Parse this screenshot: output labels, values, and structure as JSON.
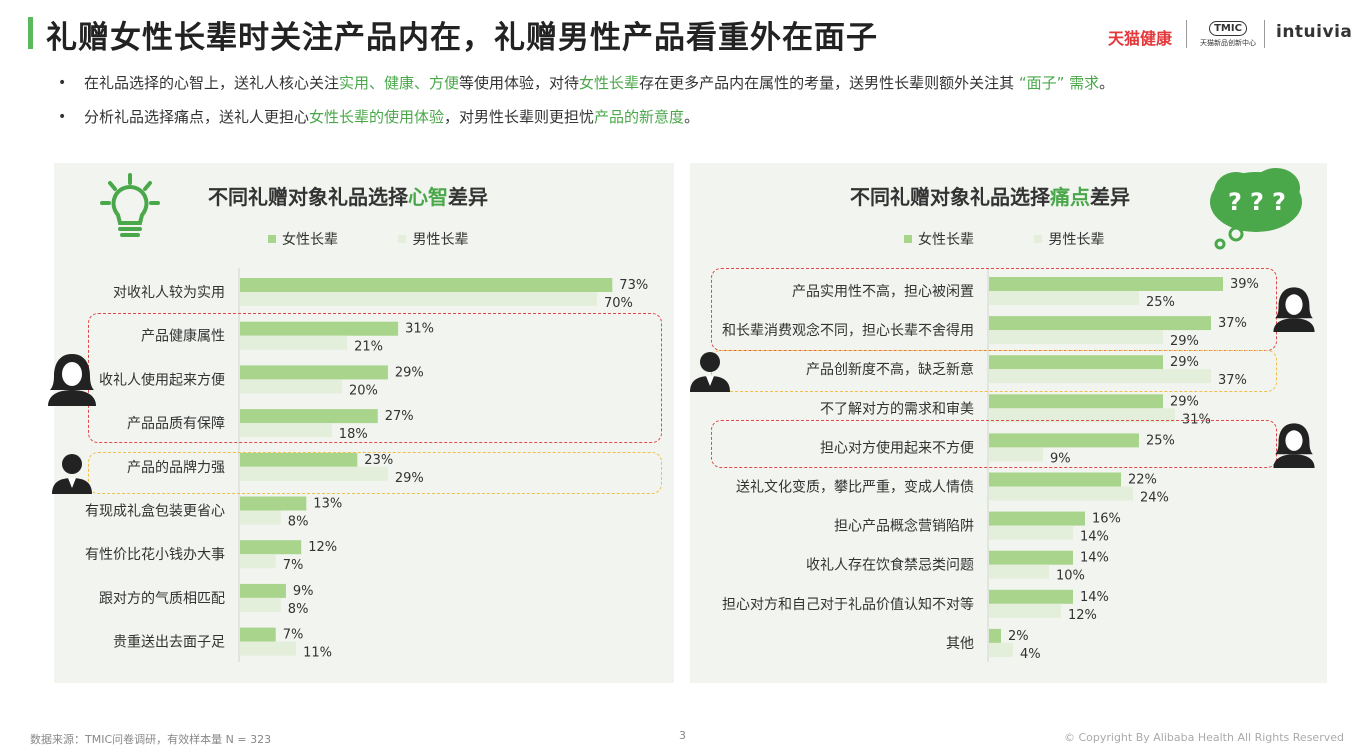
{
  "title": "礼赠女性长辈时关注产品内在，礼赠男性产品看重外在面子",
  "brands": {
    "tmall": "天猫健康",
    "tmic": "TMIC",
    "tmic_sub": "天猫新品创新中心",
    "intuivia": "intuivia"
  },
  "bullets": [
    {
      "parts": [
        "在礼品选择的心智上，送礼人核心关注",
        "实用、健康、方便",
        "等使用体验，对待",
        "女性长辈",
        "存在更多产品内在属性的考量，送男性长辈则额外关注其 ",
        "“面子” 需求",
        "。"
      ]
    },
    {
      "parts": [
        "分析礼品选择痛点，送礼人更担心",
        "女性长辈的使用体验",
        "，对男性长辈则更担忧",
        "产品的新意度",
        "。"
      ]
    }
  ],
  "colors": {
    "female": "#a9d48b",
    "male": "#e3eedb",
    "accent": "#4aa84a",
    "red_box": "#e04a4a",
    "yellow_box": "#f0c04a"
  },
  "legend": {
    "female": "女性长辈",
    "male": "男性长辈"
  },
  "chart_data": [
    {
      "type": "bar",
      "title_parts": [
        "不同礼赠对象礼品选择",
        "心智",
        "差异"
      ],
      "categories": [
        "对收礼人较为实用",
        "产品健康属性",
        "收礼人使用起来方便",
        "产品品质有保障",
        "产品的品牌力强",
        "有现成礼盒包装更省心",
        "有性价比花小钱办大事",
        "跟对方的气质相匹配",
        "贵重送出去面子足"
      ],
      "series": [
        {
          "name": "女性长辈",
          "values": [
            73,
            31,
            29,
            27,
            23,
            13,
            12,
            9,
            7
          ]
        },
        {
          "name": "男性长辈",
          "values": [
            70,
            21,
            20,
            18,
            29,
            8,
            7,
            8,
            11
          ]
        }
      ],
      "unit": "%"
    },
    {
      "type": "bar",
      "title_parts": [
        "不同礼赠对象礼品选择",
        "痛点",
        "差异"
      ],
      "categories": [
        "产品实用性不高，担心被闲置",
        "和长辈消费观念不同，担心长辈不舍得用",
        "产品创新度不高，缺乏新意",
        "不了解对方的需求和审美",
        "担心对方使用起来不方便",
        "送礼文化变质，攀比严重，变成人情债",
        "担心产品概念营销陷阱",
        "收礼人存在饮食禁忌类问题",
        "担心对方和自己对于礼品价值认知不对等",
        "其他"
      ],
      "series": [
        {
          "name": "女性长辈",
          "values": [
            39,
            37,
            29,
            29,
            25,
            22,
            16,
            14,
            14,
            2
          ]
        },
        {
          "name": "男性长辈",
          "values": [
            25,
            29,
            37,
            31,
            9,
            24,
            14,
            10,
            12,
            4
          ]
        }
      ],
      "unit": "%"
    }
  ],
  "footer": {
    "source": "数据来源：TMIC问卷调研，有效样本量 N = 323",
    "page": "3",
    "copyright": "© Copyright By Alibaba Health All Rights Reserved"
  }
}
